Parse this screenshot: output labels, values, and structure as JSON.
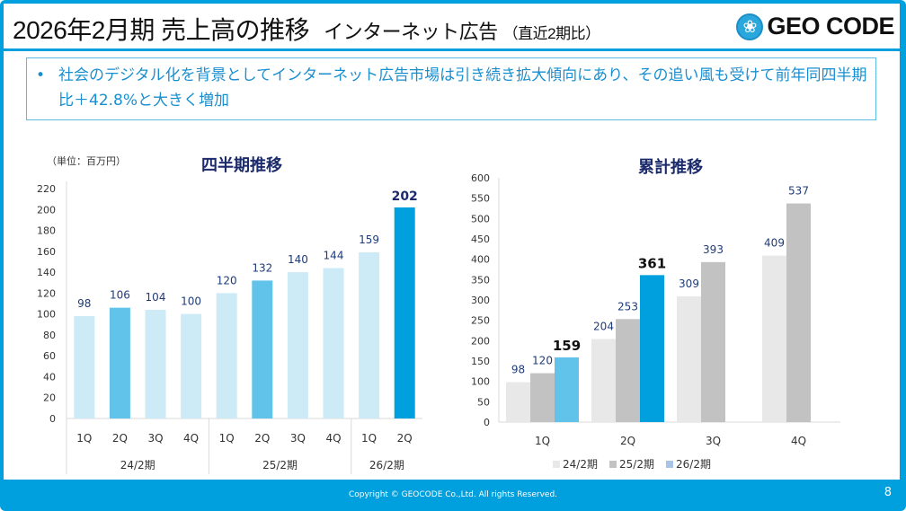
{
  "header": {
    "title": "2026年2月期 売上高の推移",
    "subtitle": "インターネット広告",
    "subtitle_note": "（直近2期比）",
    "logo_text": "GEO CODE",
    "logo_icon": "flower-crest-icon"
  },
  "summary": {
    "bullet": "•",
    "text": "社会のデジタル化を背景としてインターネット広告市場は引き続き拡大傾向にあり、その追い風も受けて前年同四半期比＋42.8%と大きく増加"
  },
  "unit_label": "（単位：百万円）",
  "chart_data": [
    {
      "type": "bar",
      "title": "四半期推移",
      "categories": [
        "1Q",
        "2Q",
        "3Q",
        "4Q",
        "1Q",
        "2Q",
        "3Q",
        "4Q",
        "1Q",
        "2Q"
      ],
      "groups": [
        {
          "label": "24/2期",
          "count": 4
        },
        {
          "label": "25/2期",
          "count": 4
        },
        {
          "label": "26/2期",
          "count": 2
        }
      ],
      "values": [
        98,
        106,
        104,
        100,
        120,
        132,
        140,
        144,
        159,
        202
      ],
      "bar_colors": [
        "#cdeaf7",
        "#62c3ea",
        "#cdeaf7",
        "#cdeaf7",
        "#cdeaf7",
        "#62c3ea",
        "#cdeaf7",
        "#cdeaf7",
        "#cdeaf7",
        "#009fdd"
      ],
      "highlight_index": 9,
      "ylim": [
        0,
        220
      ],
      "yticks": [
        0,
        20,
        40,
        60,
        80,
        100,
        120,
        140,
        160,
        180,
        200,
        220
      ],
      "xlabel": "",
      "ylabel": "（単位：百万円）",
      "grid": false
    },
    {
      "type": "bar",
      "title": "累計推移",
      "categories": [
        "1Q",
        "2Q",
        "3Q",
        "4Q"
      ],
      "series": [
        {
          "name": "24/2期",
          "color": "#e8e8e8",
          "values": [
            98,
            204,
            309,
            409
          ]
        },
        {
          "name": "25/2期",
          "color": "#c2c2c2",
          "values": [
            120,
            253,
            393,
            537
          ]
        },
        {
          "name": "26/2期",
          "color": "#009fdd",
          "values": [
            159,
            361,
            null,
            null
          ],
          "colors": [
            "#62c3ea",
            "#009fdd"
          ]
        }
      ],
      "legend_colors": [
        "#e8e8e8",
        "#c2c2c2",
        "#a7c4e6"
      ],
      "ylim": [
        0,
        600
      ],
      "yticks": [
        0,
        50,
        100,
        150,
        200,
        250,
        300,
        350,
        400,
        450,
        500,
        550,
        600
      ],
      "legend": "bottom",
      "grid": false
    }
  ],
  "footer": {
    "copyright": "Copyright © GEOCODE Co.,Ltd. All rights Reserved.",
    "page": "8"
  }
}
